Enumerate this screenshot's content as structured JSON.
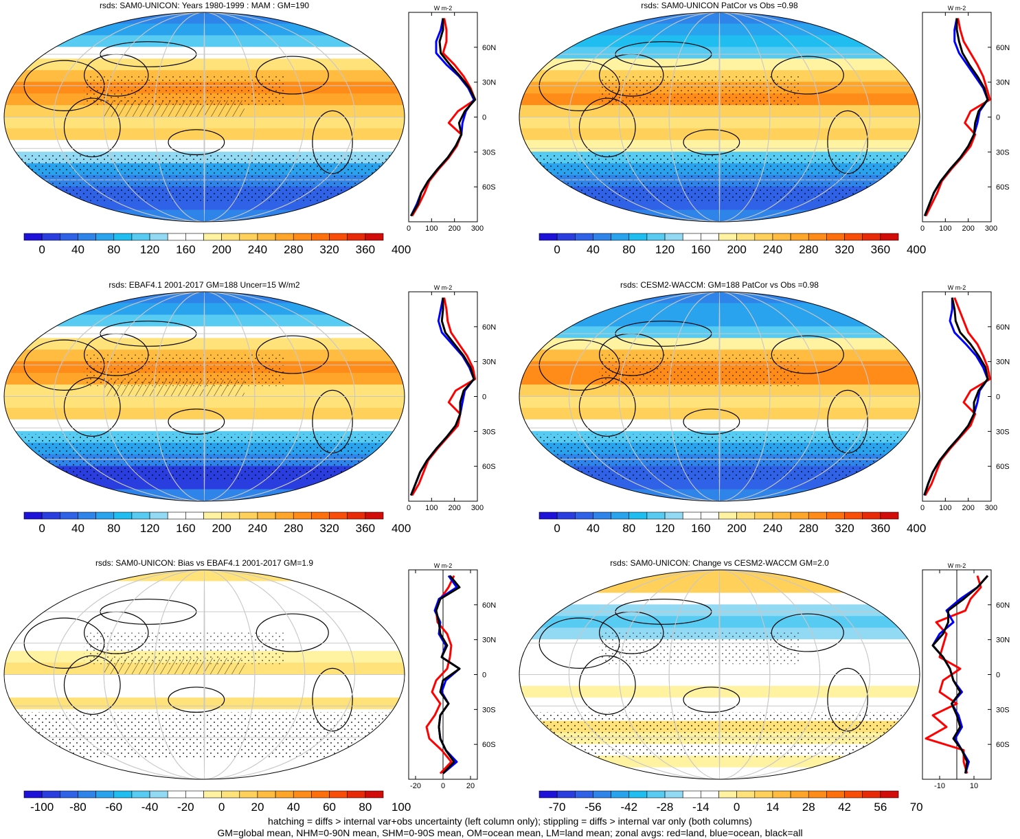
{
  "palettes": {
    "abs": [
      "#1e12d8",
      "#2a3ee0",
      "#2f62e6",
      "#2f84ea",
      "#2aa3ee",
      "#1fbdf0",
      "#58cbf2",
      "#92d9f4",
      "#ffffff",
      "#ffffff",
      "#fff2a0",
      "#ffe27a",
      "#ffd05a",
      "#ffbc40",
      "#ffa52a",
      "#ff8c18",
      "#ff700c",
      "#f84e08",
      "#e82a08",
      "#d20c08"
    ],
    "diff": [
      "#1e12d8",
      "#2a3ee0",
      "#2f62e6",
      "#2f84ea",
      "#2aa3ee",
      "#1fbdf0",
      "#58cbf2",
      "#92d9f4",
      "#ffffff",
      "#ffffff",
      "#fff2a0",
      "#ffe27a",
      "#ffd05a",
      "#ffbc40",
      "#ffa52a",
      "#ff8c18",
      "#ff700c",
      "#f84e08",
      "#e82a08",
      "#d20c08"
    ]
  },
  "line_colors": {
    "land": "#ff0000",
    "ocean": "#0000ff",
    "all": "#000000"
  },
  "chart_data": [
    {
      "type": "heatmap",
      "title": "rsds: SAM0-UNICON: Years 1980-1999 : MAM : GM=190",
      "colorbar": {
        "ticks": [
          "0",
          "40",
          "80",
          "120",
          "160",
          "200",
          "240",
          "280",
          "320",
          "360",
          "400"
        ]
      },
      "zonal": {
        "xlim": [
          0,
          300
        ],
        "xticks": [
          "0",
          "100",
          "200",
          "300"
        ],
        "unit": "W m-2",
        "lat_ticks": [
          "60N",
          "30N",
          "0",
          "30S",
          "60S"
        ],
        "lat": [
          85,
          75,
          65,
          55,
          45,
          35,
          25,
          15,
          5,
          -5,
          -15,
          -25,
          -35,
          -45,
          -55,
          -65,
          -75,
          -85
        ],
        "all": [
          150,
          150,
          135,
          140,
          180,
          225,
          265,
          290,
          245,
          220,
          230,
          205,
          170,
          125,
          85,
          55,
          40,
          10
        ],
        "land": [
          155,
          165,
          165,
          150,
          200,
          240,
          270,
          290,
          215,
          175,
          230,
          210,
          175,
          130,
          90,
          70,
          45,
          15
        ],
        "ocean": [
          150,
          140,
          120,
          120,
          165,
          220,
          260,
          285,
          250,
          235,
          230,
          205,
          170,
          125,
          85,
          55,
          35,
          10
        ]
      }
    },
    {
      "type": "heatmap",
      "title": "rsds: SAM0-UNICON PatCor vs Obs =0.98",
      "colorbar": {
        "ticks": [
          "0",
          "40",
          "80",
          "120",
          "160",
          "200",
          "240",
          "280",
          "320",
          "360",
          "400"
        ]
      },
      "zonal": {
        "xlim": [
          0,
          300
        ],
        "xticks": [
          "0",
          "100",
          "200",
          "300"
        ],
        "unit": "W m-2",
        "lat_ticks": [
          "60N",
          "30N",
          "0",
          "30S",
          "60S"
        ],
        "lat": [
          85,
          75,
          65,
          55,
          45,
          35,
          25,
          15,
          5,
          -5,
          -15,
          -25,
          -35,
          -45,
          -55,
          -65,
          -75,
          -85
        ],
        "all": [
          150,
          150,
          160,
          175,
          205,
          240,
          270,
          285,
          245,
          230,
          225,
          200,
          165,
          120,
          80,
          50,
          30,
          10
        ],
        "land": [
          155,
          165,
          180,
          210,
          240,
          265,
          280,
          295,
          210,
          185,
          230,
          210,
          170,
          125,
          85,
          65,
          40,
          15
        ],
        "ocean": [
          150,
          140,
          140,
          160,
          195,
          230,
          265,
          285,
          250,
          240,
          225,
          200,
          165,
          120,
          80,
          50,
          30,
          10
        ]
      }
    },
    {
      "type": "heatmap",
      "title": "rsds: EBAF4.1 2001-2017 GM=188 Uncer=15 W/m2",
      "colorbar": {
        "ticks": [
          "0",
          "40",
          "80",
          "120",
          "160",
          "200",
          "240",
          "280",
          "320",
          "360",
          "400"
        ]
      },
      "zonal": {
        "xlim": [
          0,
          300
        ],
        "xticks": [
          "0",
          "100",
          "200",
          "300"
        ],
        "unit": "W m-2",
        "lat_ticks": [
          "60N",
          "30N",
          "0",
          "30S",
          "60S"
        ],
        "lat": [
          85,
          75,
          65,
          55,
          45,
          35,
          25,
          15,
          5,
          -5,
          -15,
          -25,
          -35,
          -45,
          -55,
          -65,
          -75,
          -85
        ],
        "all": [
          150,
          150,
          145,
          160,
          200,
          240,
          270,
          285,
          240,
          225,
          225,
          205,
          165,
          120,
          80,
          50,
          30,
          10
        ],
        "land": [
          155,
          165,
          170,
          185,
          220,
          255,
          280,
          290,
          205,
          175,
          225,
          215,
          170,
          125,
          85,
          65,
          45,
          15
        ],
        "ocean": [
          150,
          140,
          130,
          145,
          190,
          235,
          265,
          285,
          245,
          235,
          225,
          205,
          165,
          120,
          80,
          50,
          30,
          10
        ]
      }
    },
    {
      "type": "heatmap",
      "title": "rsds: CESM2-WACCM: GM=188 PatCor vs Obs =0.98",
      "colorbar": {
        "ticks": [
          "0",
          "40",
          "80",
          "120",
          "160",
          "200",
          "240",
          "280",
          "320",
          "360",
          "400"
        ]
      },
      "zonal": {
        "xlim": [
          0,
          300
        ],
        "xticks": [
          "0",
          "100",
          "200",
          "300"
        ],
        "unit": "W m-2",
        "lat_ticks": [
          "60N",
          "30N",
          "0",
          "30S",
          "60S"
        ],
        "lat": [
          85,
          75,
          65,
          55,
          45,
          35,
          25,
          15,
          5,
          -5,
          -15,
          -25,
          -35,
          -45,
          -55,
          -65,
          -75,
          -85
        ],
        "all": [
          130,
          140,
          145,
          165,
          210,
          245,
          275,
          285,
          245,
          225,
          225,
          200,
          160,
          115,
          75,
          45,
          25,
          8
        ],
        "land": [
          140,
          160,
          180,
          200,
          240,
          265,
          285,
          295,
          210,
          180,
          230,
          210,
          165,
          120,
          80,
          60,
          40,
          12
        ],
        "ocean": [
          130,
          130,
          120,
          140,
          190,
          235,
          265,
          285,
          250,
          240,
          225,
          200,
          160,
          115,
          75,
          45,
          25,
          8
        ]
      }
    },
    {
      "type": "heatmap",
      "title": "rsds: SAM0-UNICON: Bias vs EBAF4.1 2001-2017 GM=1.9",
      "colorbar": {
        "ticks": [
          "-100",
          "-80",
          "-60",
          "-40",
          "-20",
          "0",
          "20",
          "40",
          "60",
          "80",
          "100"
        ]
      },
      "zonal": {
        "xlim": [
          -25,
          25
        ],
        "xticks": [
          "-20",
          "0",
          "20"
        ],
        "unit": "W m-2",
        "lat_ticks": [
          "60N",
          "30N",
          "0",
          "30S",
          "60S"
        ],
        "lat": [
          85,
          75,
          65,
          55,
          45,
          35,
          25,
          15,
          5,
          -5,
          -15,
          -25,
          -35,
          -45,
          -55,
          -65,
          -75,
          -85
        ],
        "all": [
          5,
          12,
          -2,
          -5,
          -3,
          -2,
          3,
          -1,
          12,
          0,
          -2,
          4,
          -2,
          -3,
          -2,
          2,
          8,
          0
        ],
        "land": [
          8,
          4,
          -2,
          -5,
          -4,
          3,
          6,
          5,
          3,
          -5,
          -8,
          -2,
          -6,
          -12,
          -10,
          -1,
          6,
          -2
        ],
        "ocean": [
          4,
          10,
          -3,
          -6,
          -2,
          -3,
          2,
          -1,
          12,
          2,
          -1,
          4,
          -2,
          -3,
          -2,
          2,
          10,
          0
        ]
      }
    },
    {
      "type": "heatmap",
      "title": "rsds: SAM0-UNICON: Change vs CESM2-WACCM GM=2.0",
      "colorbar": {
        "ticks": [
          "-70",
          "-56",
          "-42",
          "-28",
          "-14",
          "0",
          "14",
          "28",
          "42",
          "56",
          "70"
        ]
      },
      "zonal": {
        "xlim": [
          -20,
          20
        ],
        "xticks": [
          "-10",
          "10"
        ],
        "unit": "W m-2",
        "lat_ticks": [
          "60N",
          "30N",
          "0",
          "30S",
          "60S"
        ],
        "lat": [
          85,
          75,
          65,
          55,
          45,
          35,
          25,
          15,
          5,
          -5,
          -15,
          -25,
          -35,
          -45,
          -55,
          -65,
          -75,
          -85
        ],
        "all": [
          18,
          12,
          4,
          -5,
          -5,
          -8,
          -14,
          -8,
          -4,
          -2,
          2,
          -3,
          0,
          2,
          -2,
          3,
          6,
          5
        ],
        "land": [
          12,
          14,
          8,
          5,
          -12,
          -6,
          -8,
          -10,
          2,
          -8,
          -10,
          0,
          -14,
          -6,
          -18,
          4,
          4,
          6
        ],
        "ocean": [
          18,
          12,
          2,
          -6,
          -2,
          -10,
          -14,
          -8,
          -4,
          -2,
          3,
          -3,
          1,
          3,
          -1,
          3,
          7,
          5
        ]
      }
    }
  ],
  "footnote": {
    "line1": "hatching = diffs > internal var+obs uncertainty (left column only); stippling = diffs > internal var only (both columns)",
    "line2": "GM=global mean, NHM=0-90N mean, SHM=0-90S mean, OM=ocean mean, LM=land mean; zonal avgs: red=land, blue=ocean, black=all"
  }
}
